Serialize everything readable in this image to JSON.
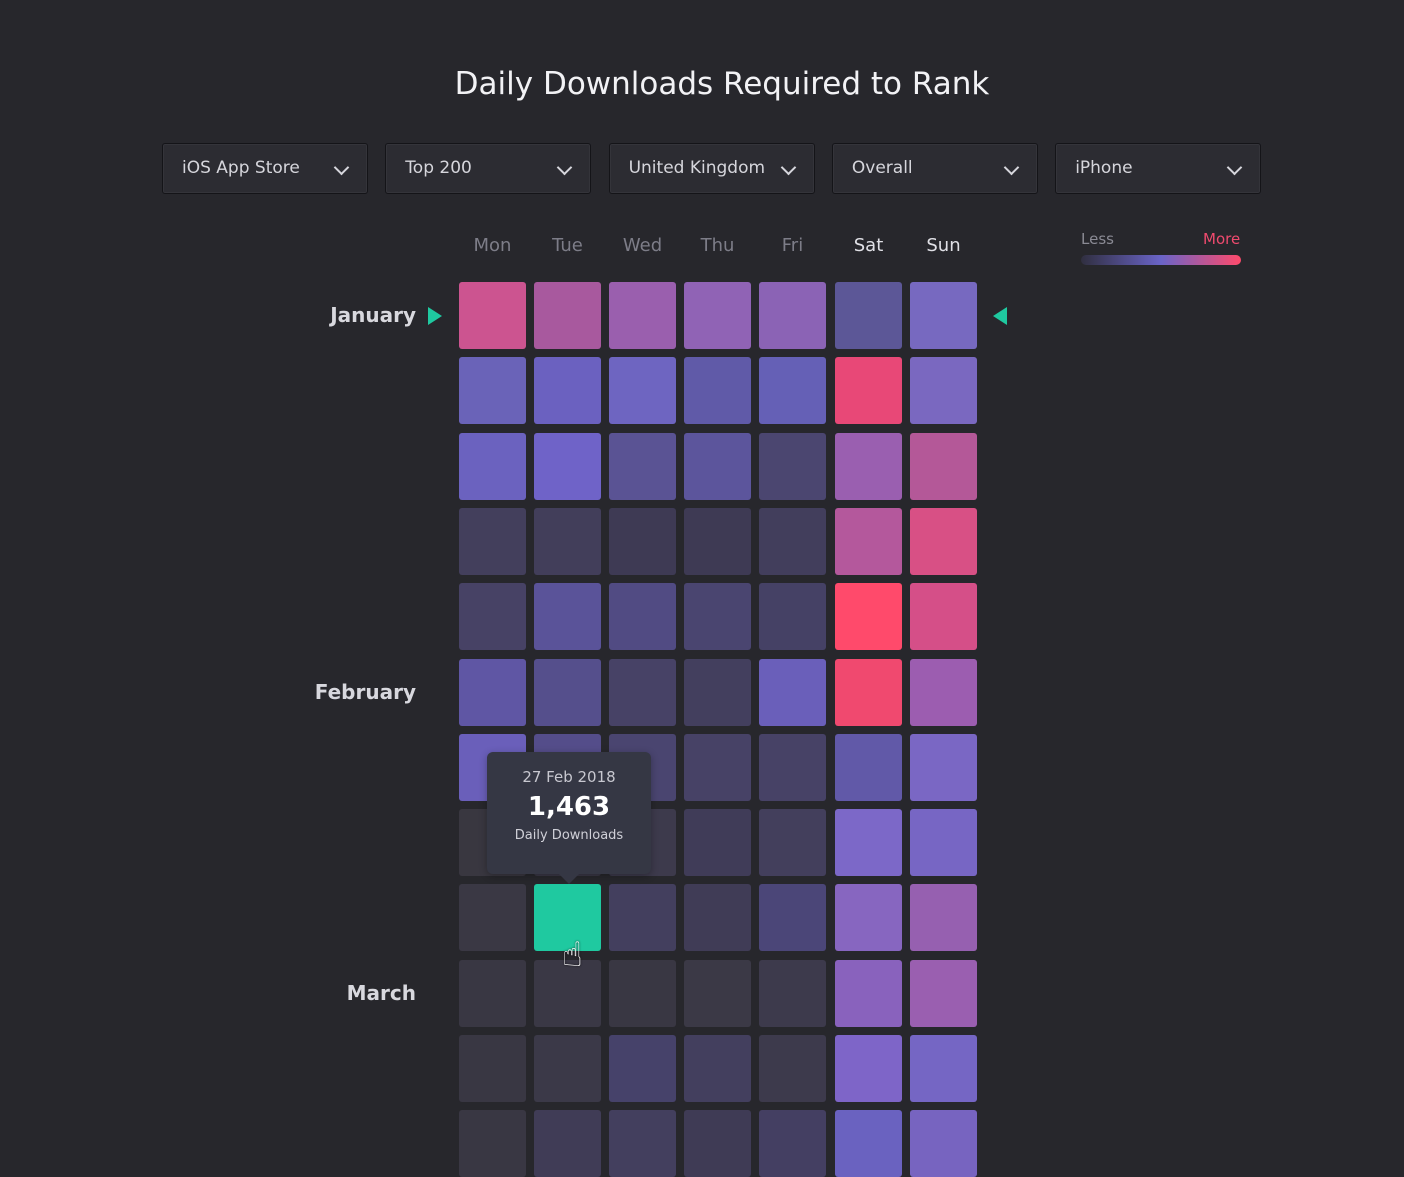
{
  "title": "Daily Downloads Required to Rank",
  "filters": [
    {
      "value": "iOS App Store",
      "icon": "chevron-down-icon"
    },
    {
      "value": "Top 200",
      "icon": "chevron-down-icon"
    },
    {
      "value": "United Kingdom",
      "icon": "chevron-down-icon"
    },
    {
      "value": "Overall",
      "icon": "chevron-down-icon"
    },
    {
      "value": "iPhone",
      "icon": "chevron-down-icon"
    }
  ],
  "days": [
    "Mon",
    "Tue",
    "Wed",
    "Thu",
    "Fri",
    "Sat",
    "Sun"
  ],
  "legend": {
    "less": "Less",
    "more": "More",
    "colors": [
      "#302f40",
      "#6a64c8",
      "#ff4a6b"
    ]
  },
  "months": [
    {
      "label": "January",
      "row": 0
    },
    {
      "label": "February",
      "row": 5
    },
    {
      "label": "March",
      "row": 9
    }
  ],
  "highlight_color": "#1fc9a0",
  "heatmap_colors": [
    [
      "#cc5490",
      "#a8599e",
      "#9a5fae",
      "#9063b5",
      "#8b63b5",
      "#5c5797",
      "#7769c0"
    ],
    [
      "#6a63b8",
      "#6b61c0",
      "#6e65c1",
      "#605aa8",
      "#6560b6",
      "#e84877",
      "#7a68c0"
    ],
    [
      "#6b62bf",
      "#6f63c8",
      "#5a5394",
      "#5c559c",
      "#4b4670",
      "#9a5fb0",
      "#b45898"
    ],
    [
      "#433f5c",
      "#423e5a",
      "#3e3a54",
      "#3e3a54",
      "#423e5c",
      "#b4589c",
      "#d85085"
    ],
    [
      "#474265",
      "#5a5399",
      "#514b83",
      "#4a4570",
      "#454165",
      "#ff4a6b",
      "#d54f88"
    ],
    [
      "#5f56a4",
      "#554f8c",
      "#474266",
      "#433f5e",
      "#6a5fba",
      "#f0496f",
      "#9c5db0"
    ],
    [
      "#6a5fba",
      "#544d8a",
      "#4a4570",
      "#474266",
      "#474266",
      "#6159a8",
      "#7a67c4"
    ],
    [
      "#393740",
      "#3a3845",
      "#3d3a4c",
      "#403c58",
      "#433f5c",
      "#7c68c8",
      "#7766c4"
    ],
    [
      "#3a3844",
      "#1fc9a0",
      "#433f5e",
      "#403c56",
      "#4b4678",
      "#8766c0",
      "#9660b0"
    ],
    [
      "#393743",
      "#3a3845",
      "#393743",
      "#3b3946",
      "#3d3a4c",
      "#8962bd",
      "#9a5fb0"
    ],
    [
      "#393743",
      "#3b3948",
      "#46426a",
      "#433f5e",
      "#3d3a4c",
      "#7e65c8",
      "#7566c4"
    ],
    [
      "#393743",
      "#403c56",
      "#433f5e",
      "#3f3b55",
      "#443f62",
      "#6a62c0",
      "#7764c0"
    ]
  ],
  "tooltip": {
    "date": "27 Feb 2018",
    "value": "1,463",
    "label": "Daily Downloads"
  }
}
